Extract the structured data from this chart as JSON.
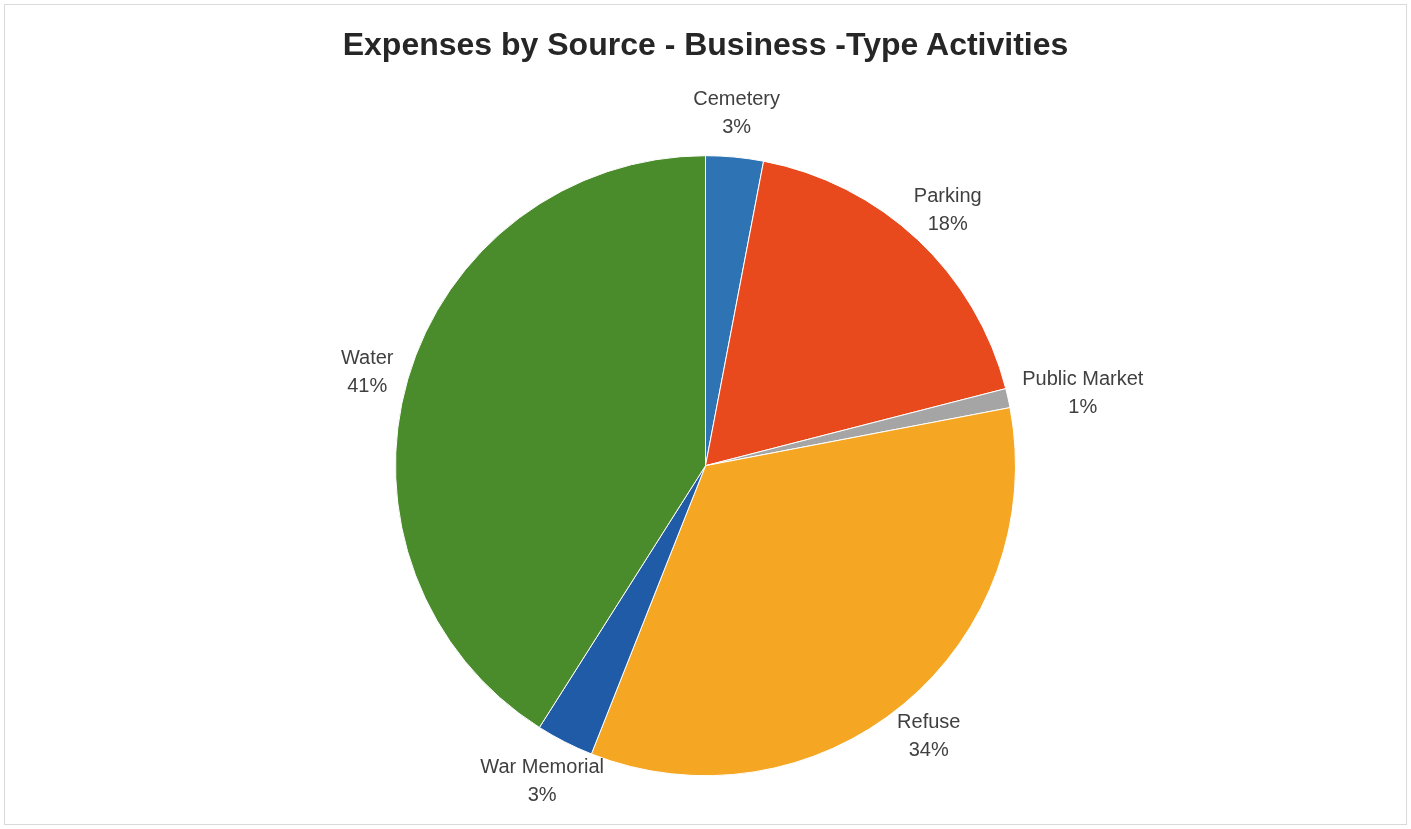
{
  "chart_data": {
    "type": "pie",
    "title": "Expenses by Source - Business -Type Activities",
    "categories": [
      "Cemetery",
      "Parking",
      "Public Market",
      "Refuse",
      "War Memorial",
      "Water"
    ],
    "values": [
      3,
      18,
      1,
      34,
      3,
      41
    ],
    "colors": [
      "#2e74b5",
      "#e8491d",
      "#a5a5a5",
      "#f5a623",
      "#1f5ba6",
      "#4a8b2c"
    ],
    "value_labels": [
      "3%",
      "18%",
      "1%",
      "34%",
      "3%",
      "41%"
    ],
    "legend": false
  }
}
